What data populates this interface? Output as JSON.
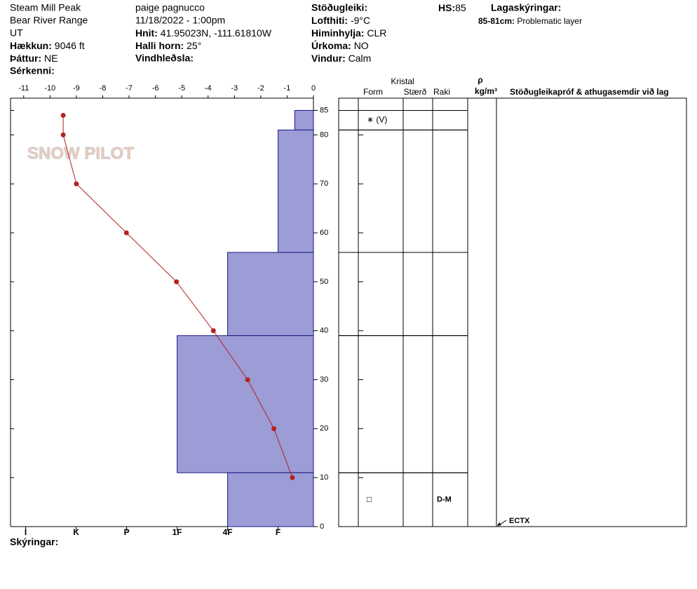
{
  "header": {
    "site": "Steam Mill Peak",
    "range": "Bear River Range",
    "state": "UT",
    "elevation": {
      "label": "Hækkun:",
      "value": "9046 ft"
    },
    "aspect": {
      "label": "Þáttur:",
      "value": "NE"
    },
    "features": {
      "label": "Sérkenni:"
    },
    "observer": "paige pagnucco",
    "datetime": "11/18/2022 - 1:00pm",
    "coordinates": {
      "label": "Hnit:",
      "value": "41.95023N, -111.61810W"
    },
    "slope": {
      "label": "Halli horn:",
      "value": "25°"
    },
    "wind_loading": {
      "label": "Vindhleðsla:"
    },
    "stability": {
      "label": "Stöðugleiki:"
    },
    "air_temp": {
      "label": "Lofthiti:",
      "value": "-9°C"
    },
    "sky": {
      "label": "Himinhylja:",
      "value": "CLR"
    },
    "precip": {
      "label": "Úrkoma:",
      "value": "NO"
    },
    "wind": {
      "label": "Vindur:",
      "value": "Calm"
    },
    "hs": {
      "label": "HS:",
      "value": "85"
    },
    "layer_notes": {
      "label": "Lagaskýringar:",
      "items": [
        {
          "range": "85-81cm:",
          "text": "Problematic layer"
        }
      ]
    },
    "watermark": "SNOW PILOT"
  },
  "footer": {
    "notes_label": "Skýringar:"
  },
  "table": {
    "group_header": "Kristal",
    "columns": [
      "Form",
      "Stærð",
      "Raki"
    ],
    "density_symbol": "ρ",
    "density_unit": "kg/m³",
    "comments_header": "Stöðugleikapróf & athugasemdir við lag"
  },
  "chart_data": {
    "type": "snow-profile",
    "xlim": [
      -11.5,
      0
    ],
    "xticks": [
      -11,
      -10,
      -9,
      -8,
      -7,
      -6,
      -5,
      -4,
      -3,
      -2,
      -1,
      0
    ],
    "ylim": [
      0,
      87.5
    ],
    "yticks": [
      0,
      10,
      20,
      30,
      40,
      50,
      60,
      70,
      80,
      85
    ],
    "x2lim": [
      6.3,
      0.3
    ],
    "x2ticks": [
      {
        "value": 6,
        "label": "I"
      },
      {
        "value": 5,
        "label": "K"
      },
      {
        "value": 4,
        "label": "P"
      },
      {
        "value": 3,
        "label": "1F"
      },
      {
        "value": 2,
        "label": "4F"
      },
      {
        "value": 1,
        "label": "F"
      }
    ],
    "temperature": {
      "color": "#b22222",
      "x": [
        -9.5,
        -9.5,
        -9.0,
        -7.1,
        -5.2,
        -3.8,
        -2.5,
        -1.5,
        -0.8
      ],
      "values": [
        84,
        80,
        70,
        60,
        50,
        40,
        30,
        20,
        10
      ]
    },
    "layer_color": "#9c9cd6",
    "layers": [
      {
        "top": 85,
        "bottom": 81,
        "hardness": 0.67,
        "form": "∗ (V)"
      },
      {
        "top": 81,
        "bottom": 56,
        "hardness": 1
      },
      {
        "top": 56,
        "bottom": 39,
        "hardness": 2
      },
      {
        "top": 39,
        "bottom": 11,
        "hardness": 3
      },
      {
        "top": 11,
        "bottom": 0,
        "hardness": 2,
        "form": "□",
        "moisture": "D-M"
      }
    ],
    "tests": [
      {
        "label": "ECTX",
        "height": 0
      }
    ]
  }
}
